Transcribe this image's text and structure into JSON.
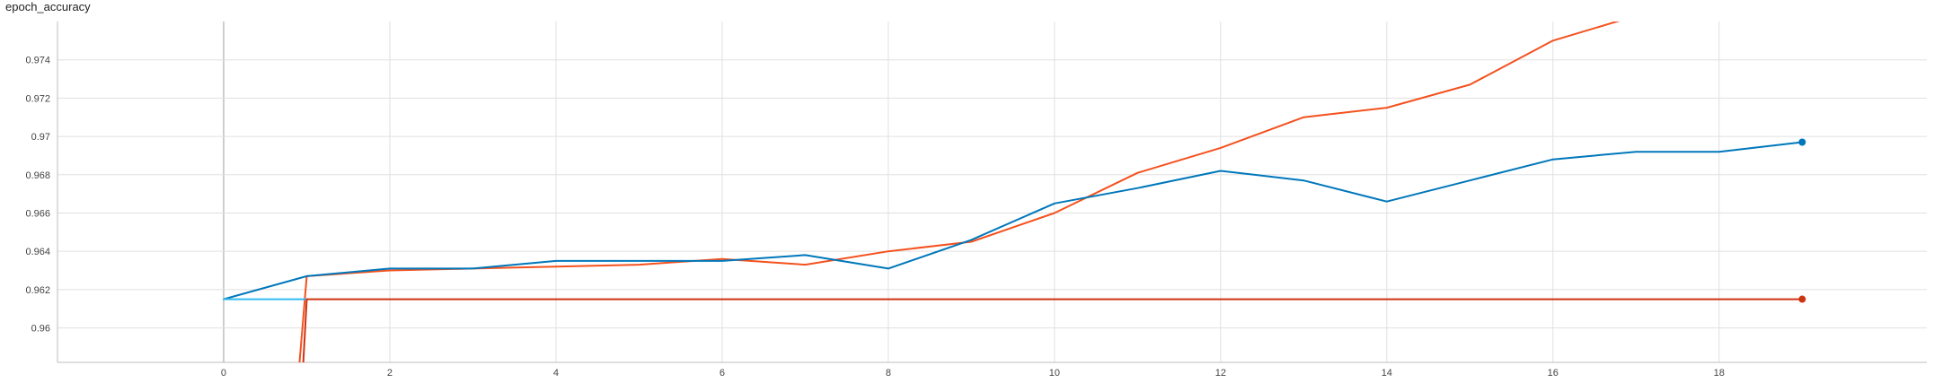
{
  "chart_data": {
    "type": "line",
    "title": "epoch_accuracy",
    "xlabel": "",
    "ylabel": "",
    "xlim": [
      -2,
      20.5
    ],
    "ylim": [
      0.9582,
      0.976
    ],
    "grid": true,
    "x_ticks": [
      0,
      2,
      4,
      6,
      8,
      10,
      12,
      14,
      16,
      18
    ],
    "x_tick_labels": [
      "0",
      "2",
      "4",
      "6",
      "8",
      "10",
      "12",
      "14",
      "16",
      "18"
    ],
    "y_ticks": [
      0.96,
      0.962,
      0.964,
      0.966,
      0.968,
      0.97,
      0.972,
      0.974
    ],
    "y_tick_labels": [
      "0.96",
      "0.962",
      "0.964",
      "0.966",
      "0.968",
      "0.97",
      "0.972",
      "0.974"
    ],
    "series": [
      {
        "color": "#f4511e",
        "x": [
          0.9,
          1,
          2,
          3,
          4,
          5,
          6,
          7,
          8,
          9,
          10,
          11,
          12,
          13,
          14,
          15,
          16,
          17
        ],
        "y": [
          0.9575,
          0.9627,
          0.963,
          0.9631,
          0.9632,
          0.9633,
          0.9636,
          0.9633,
          0.964,
          0.9645,
          0.966,
          0.9681,
          0.9694,
          0.971,
          0.9715,
          0.9727,
          0.975,
          0.9763
        ]
      },
      {
        "color": "#0077bb",
        "x": [
          0,
          1,
          2,
          3,
          4,
          5,
          6,
          7,
          8,
          9,
          10,
          11,
          12,
          13,
          14,
          15,
          16,
          17,
          18,
          19
        ],
        "y": [
          0.9615,
          0.9627,
          0.9631,
          0.9631,
          0.9635,
          0.9635,
          0.9635,
          0.9638,
          0.9631,
          0.9646,
          0.9665,
          0.9673,
          0.9682,
          0.9677,
          0.9666,
          0.9677,
          0.9688,
          0.9692,
          0.9692,
          0.9697
        ],
        "end_marker": true
      },
      {
        "color": "#33bbee",
        "x": [
          0,
          1
        ],
        "y": [
          0.9615,
          0.9615
        ]
      },
      {
        "color": "#cc3311",
        "x": [
          0.95,
          1,
          2,
          3,
          4,
          5,
          6,
          7,
          8,
          9,
          10,
          11,
          12,
          13,
          14,
          15,
          16,
          17,
          18,
          19
        ],
        "y": [
          0.9575,
          0.9615,
          0.9615,
          0.9615,
          0.9615,
          0.9615,
          0.9615,
          0.9615,
          0.9615,
          0.9615,
          0.9615,
          0.9615,
          0.9615,
          0.9615,
          0.9615,
          0.9615,
          0.9615,
          0.9615,
          0.9615,
          0.9615
        ],
        "end_marker": true
      }
    ]
  }
}
